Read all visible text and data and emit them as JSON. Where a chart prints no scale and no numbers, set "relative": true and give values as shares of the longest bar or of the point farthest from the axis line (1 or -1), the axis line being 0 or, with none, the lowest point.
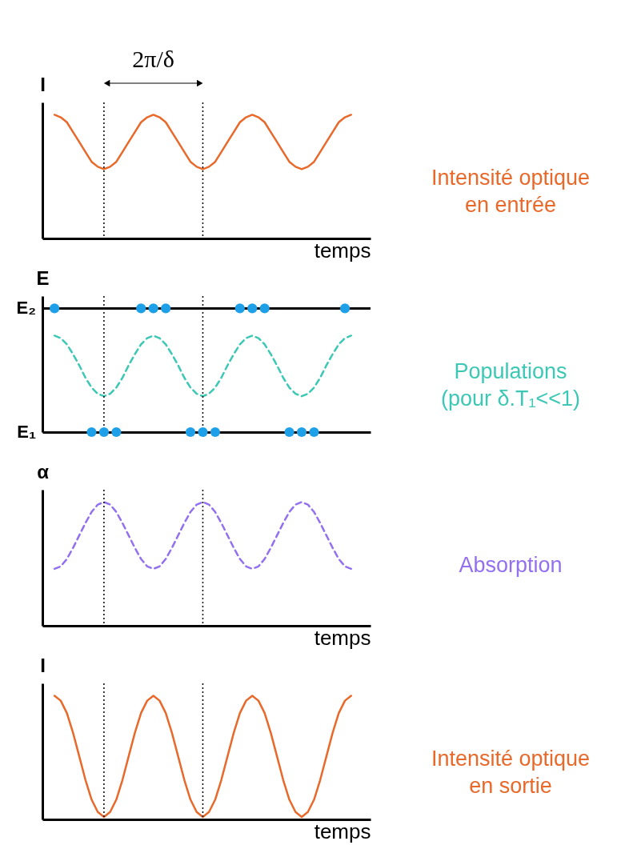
{
  "chart_data": [
    {
      "type": "line",
      "ylabel": "I",
      "xlabel": "temps",
      "relative": true,
      "tick_labels": false,
      "categories": [
        null,
        null,
        null,
        null,
        null,
        null,
        null,
        null,
        null,
        null,
        null,
        null,
        null,
        null,
        null,
        null,
        null,
        null,
        null,
        null,
        null,
        null,
        null,
        null,
        null,
        null,
        null,
        null,
        null,
        null,
        null,
        null,
        null,
        null,
        null,
        null,
        null,
        null,
        null,
        null,
        null,
        null,
        null,
        null,
        null,
        null,
        null,
        null,
        null
      ],
      "series": [
        {
          "color": "#e8692a",
          "line_style": "solid",
          "values": [
            1,
            0.98,
            0.94,
            0.86,
            0.78,
            0.7,
            0.62,
            0.58,
            0.56,
            0.58,
            0.62,
            0.7,
            0.78,
            0.86,
            0.94,
            0.98,
            1,
            0.98,
            0.94,
            0.86,
            0.78,
            0.7,
            0.62,
            0.58,
            0.56,
            0.58,
            0.62,
            0.7,
            0.78,
            0.86,
            0.94,
            0.98,
            1,
            0.98,
            0.94,
            0.86,
            0.78,
            0.7,
            0.62,
            0.58,
            0.56,
            0.58,
            0.62,
            0.7,
            0.78,
            0.86,
            0.94,
            0.98,
            1
          ]
        }
      ],
      "annotations": [
        "2π/δ",
        "Intensité optique en entrée"
      ]
    },
    {
      "type": "line",
      "ylabel": "E",
      "relative": true,
      "tick_labels": false,
      "categories": [
        null,
        null,
        null,
        null,
        null,
        null,
        null,
        null,
        null,
        null,
        null,
        null,
        null,
        null,
        null,
        null,
        null,
        null,
        null,
        null,
        null,
        null,
        null,
        null,
        null,
        null,
        null,
        null,
        null,
        null,
        null,
        null,
        null,
        null,
        null,
        null,
        null,
        null,
        null,
        null,
        null,
        null,
        null,
        null,
        null,
        null,
        null,
        null,
        null
      ],
      "series": [
        {
          "color": "#3cc8b4",
          "line_style": "dashed",
          "values": [
            0.78,
            0.76,
            0.71,
            0.63,
            0.54,
            0.44,
            0.36,
            0.31,
            0.29,
            0.31,
            0.36,
            0.44,
            0.54,
            0.63,
            0.71,
            0.76,
            0.78,
            0.76,
            0.71,
            0.63,
            0.54,
            0.44,
            0.36,
            0.31,
            0.29,
            0.31,
            0.36,
            0.44,
            0.54,
            0.63,
            0.71,
            0.76,
            0.78,
            0.76,
            0.71,
            0.63,
            0.54,
            0.44,
            0.36,
            0.31,
            0.29,
            0.31,
            0.36,
            0.44,
            0.54,
            0.63,
            0.71,
            0.76,
            0.78
          ]
        },
        {
          "type": "scatter",
          "color": "#1ea0e8",
          "values": [
            1,
            null,
            null,
            null,
            null,
            null,
            null,
            null,
            null,
            null,
            null,
            null,
            null,
            null,
            1,
            null,
            1,
            null,
            1,
            null,
            null,
            null,
            null,
            null,
            null,
            null,
            null,
            null,
            null,
            null,
            1,
            null,
            1,
            null,
            1,
            null,
            null,
            null,
            null,
            null,
            null,
            null,
            null,
            null,
            null,
            null,
            null,
            1,
            null
          ]
        },
        {
          "type": "scatter",
          "color": "#1ea0e8",
          "values": [
            null,
            null,
            null,
            null,
            null,
            null,
            0,
            null,
            0,
            null,
            0,
            null,
            null,
            null,
            null,
            null,
            null,
            null,
            null,
            null,
            null,
            null,
            0,
            null,
            0,
            null,
            0,
            null,
            null,
            null,
            null,
            null,
            null,
            null,
            null,
            null,
            null,
            null,
            0,
            null,
            0,
            null,
            0,
            null,
            null,
            null,
            null,
            null,
            null
          ]
        }
      ],
      "ref_lines": [
        {
          "axis": "y",
          "value": 1,
          "label": "E₂",
          "color": "#000000",
          "line_style": "solid"
        }
      ],
      "annotations": [
        "E₁",
        "Populations (pour δ.T₁<<1)"
      ]
    },
    {
      "type": "line",
      "ylabel": "α",
      "xlabel": "temps",
      "relative": true,
      "tick_labels": false,
      "categories": [
        null,
        null,
        null,
        null,
        null,
        null,
        null,
        null,
        null,
        null,
        null,
        null,
        null,
        null,
        null,
        null,
        null,
        null,
        null,
        null,
        null,
        null,
        null,
        null,
        null,
        null,
        null,
        null,
        null,
        null,
        null,
        null,
        null,
        null,
        null,
        null,
        null,
        null,
        null,
        null,
        null,
        null,
        null,
        null,
        null,
        null,
        null,
        null,
        null
      ],
      "series": [
        {
          "color": "#9370f0",
          "line_style": "dashed",
          "values": [
            0.46,
            0.48,
            0.54,
            0.63,
            0.73,
            0.83,
            0.92,
            0.98,
            1,
            0.98,
            0.92,
            0.83,
            0.73,
            0.63,
            0.54,
            0.48,
            0.46,
            0.48,
            0.54,
            0.63,
            0.73,
            0.83,
            0.92,
            0.98,
            1,
            0.98,
            0.92,
            0.83,
            0.73,
            0.63,
            0.54,
            0.48,
            0.46,
            0.48,
            0.54,
            0.63,
            0.73,
            0.83,
            0.92,
            0.98,
            1,
            0.98,
            0.92,
            0.83,
            0.73,
            0.63,
            0.54,
            0.48,
            0.46
          ]
        }
      ],
      "annotations": [
        "Absorption"
      ]
    },
    {
      "type": "line",
      "ylabel": "I",
      "xlabel": "temps",
      "relative": true,
      "tick_labels": false,
      "categories": [
        null,
        null,
        null,
        null,
        null,
        null,
        null,
        null,
        null,
        null,
        null,
        null,
        null,
        null,
        null,
        null,
        null,
        null,
        null,
        null,
        null,
        null,
        null,
        null,
        null,
        null,
        null,
        null,
        null,
        null,
        null,
        null,
        null,
        null,
        null,
        null,
        null,
        null,
        null,
        null,
        null,
        null,
        null,
        null,
        null,
        null,
        null,
        null,
        null
      ],
      "series": [
        {
          "color": "#e8692a",
          "line_style": "solid",
          "values": [
            1,
            0.96,
            0.86,
            0.7,
            0.51,
            0.32,
            0.16,
            0.06,
            0.02,
            0.06,
            0.16,
            0.32,
            0.51,
            0.7,
            0.86,
            0.96,
            1,
            0.96,
            0.86,
            0.7,
            0.51,
            0.32,
            0.16,
            0.06,
            0.02,
            0.06,
            0.16,
            0.32,
            0.51,
            0.7,
            0.86,
            0.96,
            1,
            0.96,
            0.86,
            0.7,
            0.51,
            0.32,
            0.16,
            0.06,
            0.02,
            0.06,
            0.16,
            0.32,
            0.51,
            0.7,
            0.86,
            0.96,
            1
          ]
        }
      ],
      "annotations": [
        "Intensité optique en sortie"
      ]
    }
  ]
}
